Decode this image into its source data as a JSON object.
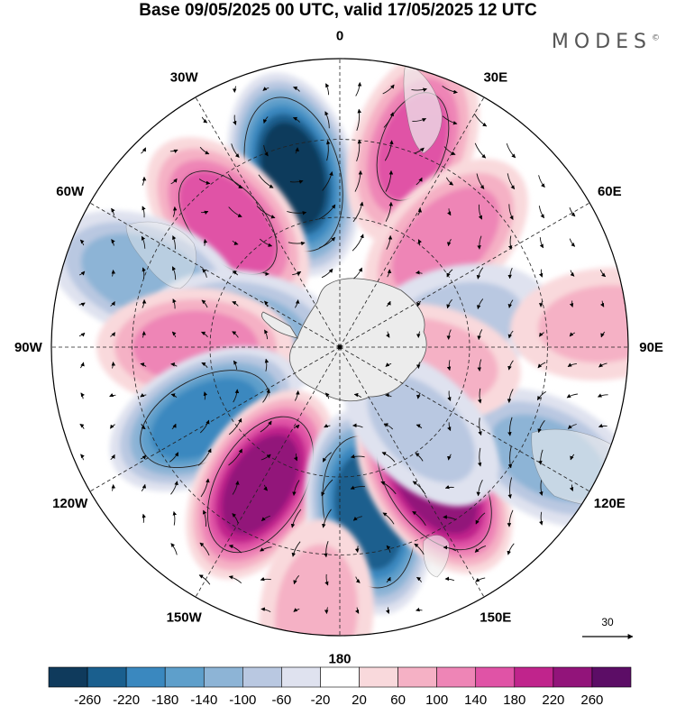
{
  "title": "Base 09/05/2025 00 UTC, valid 17/05/2025 12 UTC",
  "brand": "MODES",
  "brand_mark": "©",
  "projection": "polar stereographic, south pole",
  "longitude_labels": [
    {
      "text": "0",
      "lon": 0
    },
    {
      "text": "30E",
      "lon": 30
    },
    {
      "text": "60E",
      "lon": 60
    },
    {
      "text": "90E",
      "lon": 90
    },
    {
      "text": "120E",
      "lon": 120
    },
    {
      "text": "150E",
      "lon": 150
    },
    {
      "text": "180",
      "lon": 180
    },
    {
      "text": "150W",
      "lon": -150
    },
    {
      "text": "120W",
      "lon": -120
    },
    {
      "text": "90W",
      "lon": -90
    },
    {
      "text": "60W",
      "lon": -60
    },
    {
      "text": "30W",
      "lon": -30
    }
  ],
  "reference_vector": {
    "label": "30",
    "value": 30
  },
  "colorbar": {
    "colors": [
      "#0f3a5c",
      "#1a5f8e",
      "#3a88bf",
      "#5e9fcb",
      "#8db4d6",
      "#b9c8e1",
      "#dfe2ef",
      "#ffffff",
      "#f9d9dc",
      "#f5b1c5",
      "#ee85b6",
      "#e053a6",
      "#c0248c",
      "#92147a",
      "#5c0d66"
    ],
    "tick_labels": [
      "-260",
      "-220",
      "-180",
      "-140",
      "-100",
      "-60",
      "-20",
      "20",
      "60",
      "100",
      "140",
      "180",
      "220",
      "260"
    ]
  },
  "anomaly_centers": [
    {
      "sign": "neg",
      "lon": -15,
      "r": 0.62,
      "strength": 270
    },
    {
      "sign": "pos",
      "lon": 20,
      "r": 0.74,
      "strength": 140
    },
    {
      "sign": "pos",
      "lon": 45,
      "r": 0.52,
      "strength": 120
    },
    {
      "sign": "pos",
      "lon": -42,
      "r": 0.58,
      "strength": 160
    },
    {
      "sign": "neg",
      "lon": -70,
      "r": 0.72,
      "strength": 120
    },
    {
      "sign": "neg",
      "lon": -80,
      "r": 0.33,
      "strength": 110
    },
    {
      "sign": "pos",
      "lon": -90,
      "r": 0.5,
      "strength": 110
    },
    {
      "sign": "neg",
      "lon": -118,
      "r": 0.53,
      "strength": 200
    },
    {
      "sign": "pos",
      "lon": -150,
      "r": 0.55,
      "strength": 230
    },
    {
      "sign": "neg",
      "lon": 170,
      "r": 0.58,
      "strength": 250
    },
    {
      "sign": "pos",
      "lon": 145,
      "r": 0.57,
      "strength": 250
    },
    {
      "sign": "neg",
      "lon": 118,
      "r": 0.82,
      "strength": 110
    },
    {
      "sign": "neg",
      "lon": 78,
      "r": 0.42,
      "strength": 60
    },
    {
      "sign": "pos",
      "lon": 100,
      "r": 0.3,
      "strength": 80
    },
    {
      "sign": "pos",
      "lon": 85,
      "r": 0.92,
      "strength": 60
    },
    {
      "sign": "neg",
      "lon": 135,
      "r": 0.4,
      "strength": 60
    },
    {
      "sign": "pos",
      "lon": -175,
      "r": 0.93,
      "strength": 70
    }
  ]
}
